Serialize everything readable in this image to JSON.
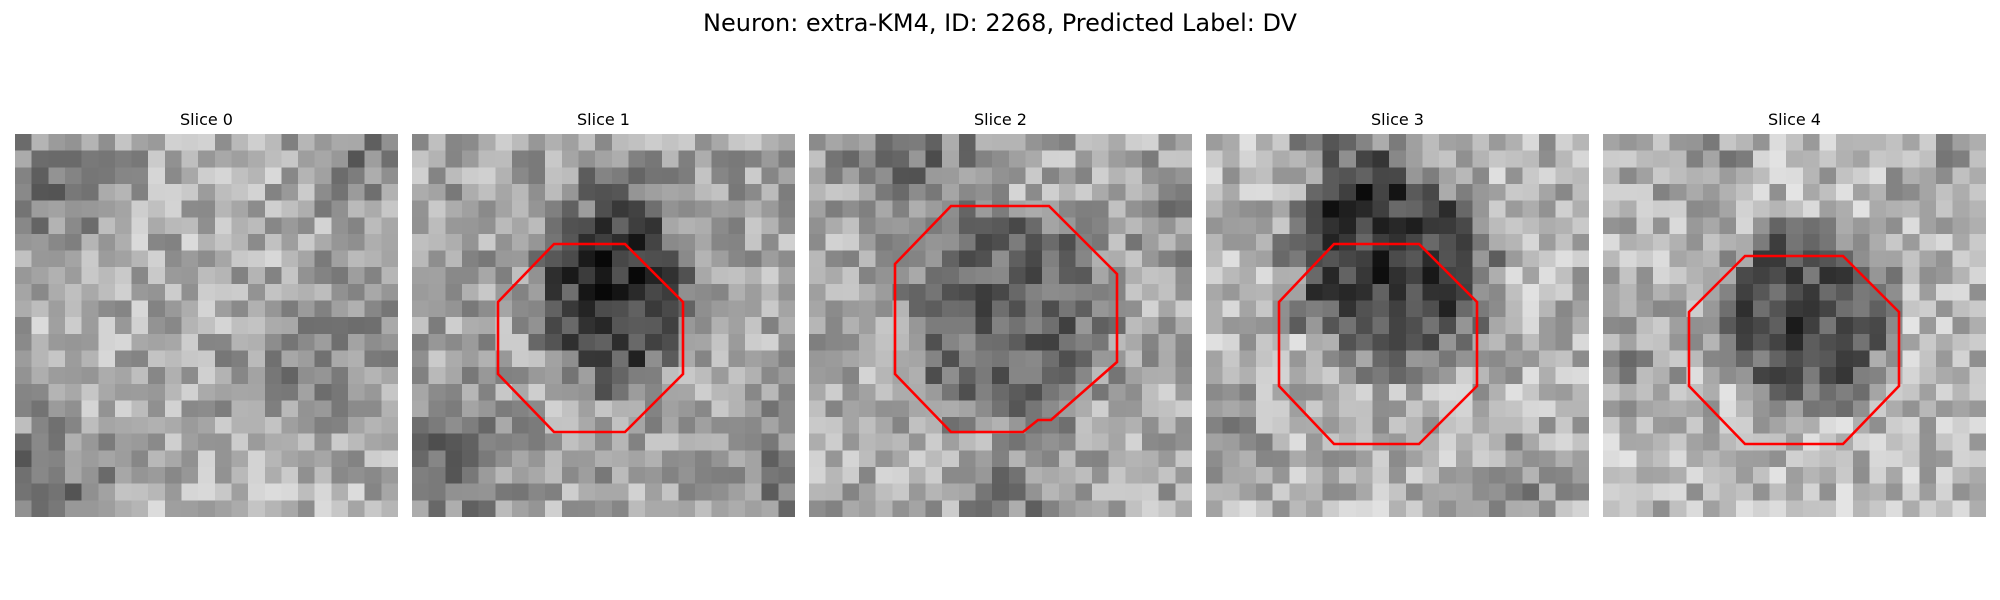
{
  "figure": {
    "title": "Neuron: extra-KM4, ID: 2268, Predicted Label: DV"
  },
  "colors": {
    "contour": "#ff0000",
    "background": "#ffffff"
  },
  "panels": [
    {
      "title": "Slice 0",
      "has_roi": false
    },
    {
      "title": "Slice 1",
      "has_roi": true
    },
    {
      "title": "Slice 2",
      "has_roi": true
    },
    {
      "title": "Slice 3",
      "has_roi": true
    },
    {
      "title": "Slice 4",
      "has_roi": true
    }
  ]
}
